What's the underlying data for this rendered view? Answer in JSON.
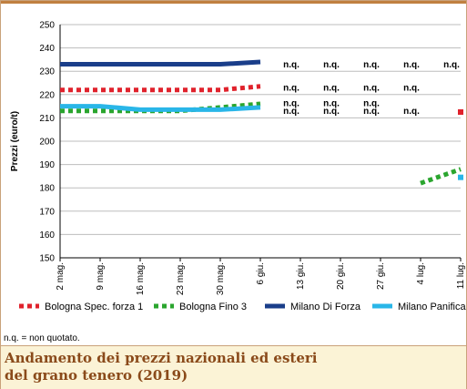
{
  "chart_data": {
    "type": "line",
    "ylabel": "Prezzi (euro/t)",
    "ylim": [
      150,
      250
    ],
    "yticks": [
      150,
      160,
      170,
      180,
      190,
      200,
      210,
      220,
      230,
      240,
      250
    ],
    "grid": "horizontal",
    "categories": [
      "2 mag.",
      "9 mag.",
      "16 mag.",
      "23 mag.",
      "30 mag.",
      "6 giu.",
      "13 giu.",
      "20 giu.",
      "27 giu.",
      "4 lug.",
      "11 lug."
    ],
    "series": [
      {
        "name": "Bologna Spec. forza 1",
        "color": "#e0222c",
        "style": "dotted",
        "values": [
          222,
          222,
          222,
          222,
          222,
          223.5,
          null,
          null,
          null,
          null,
          212.5
        ]
      },
      {
        "name": "Bologna Fino 3",
        "color": "#2aa52e",
        "style": "dotted",
        "values": [
          213,
          213,
          213,
          213,
          214.5,
          216,
          null,
          null,
          null,
          182,
          188
        ]
      },
      {
        "name": "Milano Di Forza",
        "color": "#1a3e8a",
        "style": "solid",
        "values": [
          233,
          233,
          233,
          233,
          233,
          234,
          null,
          null,
          null,
          null,
          null
        ]
      },
      {
        "name": "Milano Panificabile",
        "color": "#29b6e8",
        "style": "solid",
        "values": [
          215,
          215,
          213.5,
          213.5,
          213.5,
          214.5,
          null,
          null,
          null,
          null,
          184.5
        ]
      }
    ],
    "annotations": [
      {
        "text": "n.q.",
        "x": "13 giu.",
        "y": 233
      },
      {
        "text": "n.q.",
        "x": "20 giu.",
        "y": 233
      },
      {
        "text": "n.q.",
        "x": "27 giu.",
        "y": 233
      },
      {
        "text": "n.q.",
        "x": "4 lug.",
        "y": 233
      },
      {
        "text": "n.q.",
        "x": "11 lug.",
        "y": 233
      },
      {
        "text": "n.q.",
        "x": "13 giu.",
        "y": 223
      },
      {
        "text": "n.q.",
        "x": "20 giu.",
        "y": 223
      },
      {
        "text": "n.q.",
        "x": "27 giu.",
        "y": 223
      },
      {
        "text": "n.q.",
        "x": "4 lug.",
        "y": 223
      },
      {
        "text": "n.q.",
        "x": "13 giu.",
        "y": 216.5
      },
      {
        "text": "n.q.",
        "x": "20 giu.",
        "y": 216.5
      },
      {
        "text": "n.q.",
        "x": "27 giu.",
        "y": 216.5
      },
      {
        "text": "n.q.",
        "x": "13 giu.",
        "y": 213
      },
      {
        "text": "n.q.",
        "x": "20 giu.",
        "y": 213
      },
      {
        "text": "n.q.",
        "x": "27 giu.",
        "y": 213
      },
      {
        "text": "n.q.",
        "x": "4 lug.",
        "y": 213
      }
    ],
    "legend_position": "bottom"
  },
  "footnote": "n.q. = non quotato.",
  "title_line1": "Andamento dei prezzi nazionali ed esteri",
  "title_line2": "del grano tenero (2019)"
}
